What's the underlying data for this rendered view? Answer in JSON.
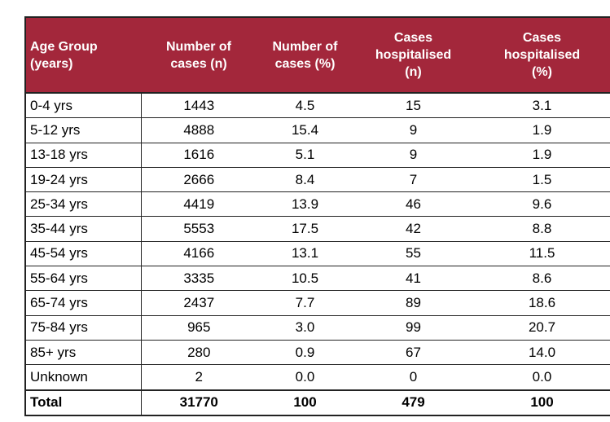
{
  "table": {
    "headers": [
      [
        "Age Group",
        "(years)"
      ],
      [
        "Number of",
        "cases (n)"
      ],
      [
        "Number of",
        "cases (%)"
      ],
      [
        "Cases",
        "hospitalised",
        "(n)"
      ],
      [
        "Cases",
        "hospitalised",
        "(%)"
      ]
    ],
    "rows": [
      [
        "0-4 yrs",
        "1443",
        "4.5",
        "15",
        "3.1"
      ],
      [
        "5-12 yrs",
        "4888",
        "15.4",
        "9",
        "1.9"
      ],
      [
        "13-18 yrs",
        "1616",
        "5.1",
        "9",
        "1.9"
      ],
      [
        "19-24 yrs",
        "2666",
        "8.4",
        "7",
        "1.5"
      ],
      [
        "25-34 yrs",
        "4419",
        "13.9",
        "46",
        "9.6"
      ],
      [
        "35-44 yrs",
        "5553",
        "17.5",
        "42",
        "8.8"
      ],
      [
        "45-54 yrs",
        "4166",
        "13.1",
        "55",
        "11.5"
      ],
      [
        "55-64 yrs",
        "3335",
        "10.5",
        "41",
        "8.6"
      ],
      [
        "65-74 yrs",
        "2437",
        "7.7",
        "89",
        "18.6"
      ],
      [
        "75-84 yrs",
        "965",
        "3.0",
        "99",
        "20.7"
      ],
      [
        "85+ yrs",
        "280",
        "0.9",
        "67",
        "14.0"
      ],
      [
        "Unknown",
        "2",
        "0.0",
        "0",
        "0.0"
      ]
    ],
    "total": [
      "Total",
      "31770",
      "100",
      "479",
      "100"
    ],
    "header_color": "#a3273b"
  }
}
